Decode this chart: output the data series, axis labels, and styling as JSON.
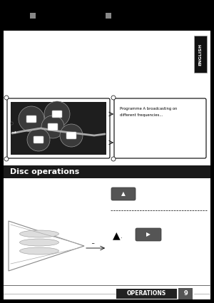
{
  "bg_color": "#000000",
  "page_bg": "#ffffff",
  "english_tab_text": "ENGLISH",
  "english_tab_color": "#ffffff",
  "english_tab_bg": "#1a1a1a",
  "small_squares_color": "#888888",
  "disc_ops_label": "Disc operations",
  "disc_ops_bg": "#1a1a1a",
  "disc_ops_color": "#ffffff",
  "footer_text": "OPERATIONS",
  "footer_page": "9"
}
